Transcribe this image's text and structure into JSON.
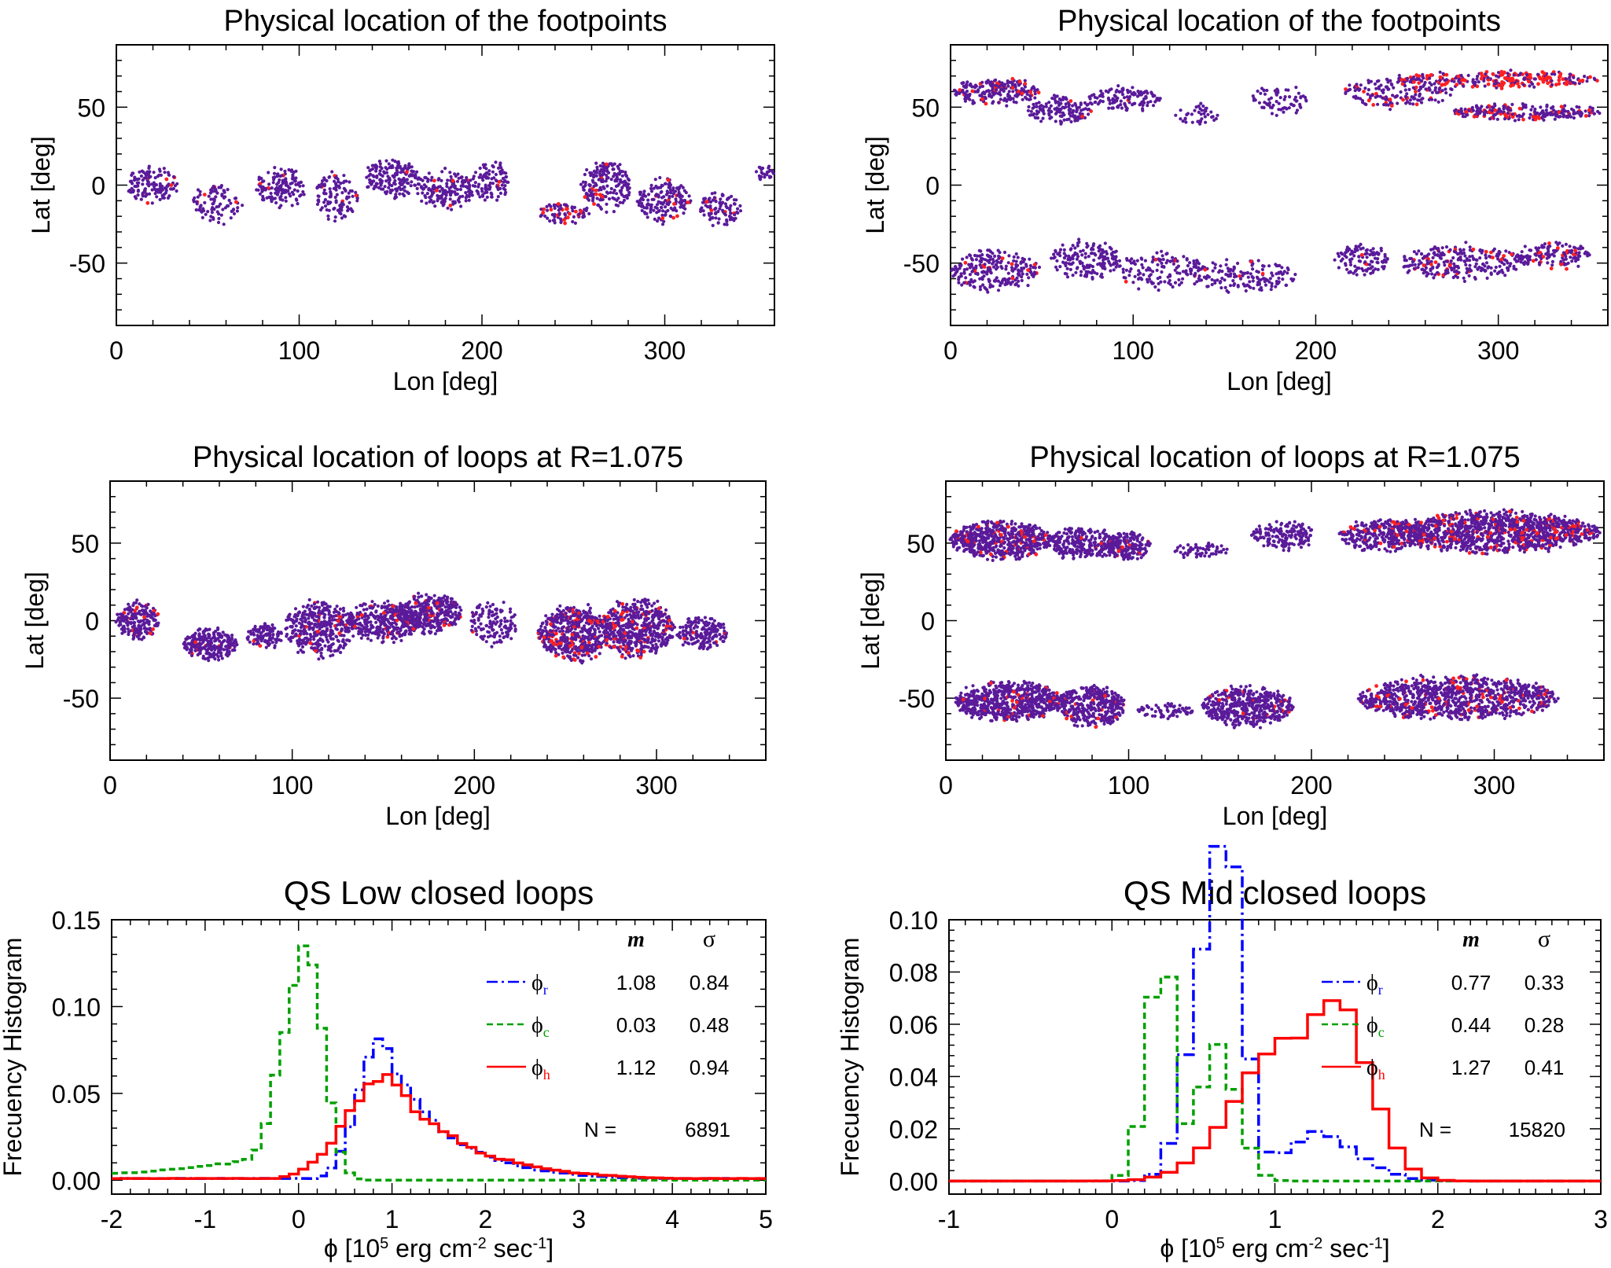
{
  "chart_data": [
    {
      "panel": "map-top-left",
      "type": "scatter",
      "title": "Physical location of the footpoints",
      "xlabel": "Lon [deg]",
      "ylabel": "Lat [deg]",
      "xlim": [
        0,
        360
      ],
      "ylim": [
        -90,
        90
      ],
      "xticks": [
        "0",
        "100",
        "200",
        "300"
      ],
      "yticks": [
        "50",
        "0",
        "-50"
      ],
      "xtick_values": [
        0,
        100,
        200,
        300
      ],
      "ytick_values": [
        50,
        0,
        -50
      ],
      "clusters": [
        {
          "cx": 20,
          "cy": 0,
          "rx": 15,
          "ry": 14,
          "n": 130,
          "red": 0.02
        },
        {
          "cx": 55,
          "cy": -12,
          "rx": 14,
          "ry": 14,
          "n": 90,
          "red": 0.05
        },
        {
          "cx": 90,
          "cy": -2,
          "rx": 14,
          "ry": 16,
          "n": 140,
          "red": 0.02
        },
        {
          "cx": 120,
          "cy": -8,
          "rx": 12,
          "ry": 18,
          "n": 120,
          "red": 0.03
        },
        {
          "cx": 150,
          "cy": 4,
          "rx": 16,
          "ry": 14,
          "n": 170,
          "red": 0.01
        },
        {
          "cx": 180,
          "cy": -3,
          "rx": 16,
          "ry": 14,
          "n": 170,
          "red": 0.02
        },
        {
          "cx": 205,
          "cy": 2,
          "rx": 10,
          "ry": 16,
          "n": 100,
          "red": 0.03
        },
        {
          "cx": 245,
          "cy": -18,
          "rx": 14,
          "ry": 8,
          "n": 80,
          "red": 0.2
        },
        {
          "cx": 268,
          "cy": 0,
          "rx": 14,
          "ry": 18,
          "n": 190,
          "red": 0.08
        },
        {
          "cx": 300,
          "cy": -10,
          "rx": 15,
          "ry": 16,
          "n": 160,
          "red": 0.06
        },
        {
          "cx": 330,
          "cy": -15,
          "rx": 12,
          "ry": 12,
          "n": 100,
          "red": 0.04
        },
        {
          "cx": 355,
          "cy": 8,
          "rx": 5,
          "ry": 6,
          "n": 25,
          "red": 0.0
        }
      ]
    },
    {
      "panel": "map-top-right",
      "type": "scatter",
      "title": "Physical location of the footpoints",
      "xlabel": "Lon [deg]",
      "ylabel": "Lat [deg]",
      "xlim": [
        0,
        360
      ],
      "ylim": [
        -90,
        90
      ],
      "xticks": [
        "0",
        "100",
        "200",
        "300"
      ],
      "yticks": [
        "50",
        "0",
        "-50"
      ],
      "xtick_values": [
        0,
        100,
        200,
        300
      ],
      "ytick_values": [
        50,
        0,
        -50
      ],
      "clusters": [
        {
          "cx": 25,
          "cy": 60,
          "rx": 24,
          "ry": 10,
          "n": 220,
          "red": 0.12
        },
        {
          "cx": 60,
          "cy": 48,
          "rx": 18,
          "ry": 10,
          "n": 140,
          "red": 0.03
        },
        {
          "cx": 95,
          "cy": 55,
          "rx": 20,
          "ry": 9,
          "n": 120,
          "red": 0.02
        },
        {
          "cx": 135,
          "cy": 45,
          "rx": 12,
          "ry": 8,
          "n": 40,
          "red": 0.0
        },
        {
          "cx": 180,
          "cy": 55,
          "rx": 15,
          "ry": 12,
          "n": 70,
          "red": 0.0
        },
        {
          "cx": 245,
          "cy": 60,
          "rx": 30,
          "ry": 12,
          "n": 180,
          "red": 0.12
        },
        {
          "cx": 300,
          "cy": 68,
          "rx": 55,
          "ry": 6,
          "n": 260,
          "red": 0.4
        },
        {
          "cx": 315,
          "cy": 47,
          "rx": 42,
          "ry": 6,
          "n": 240,
          "red": 0.18
        },
        {
          "cx": 25,
          "cy": -55,
          "rx": 25,
          "ry": 15,
          "n": 240,
          "red": 0.04
        },
        {
          "cx": 75,
          "cy": -48,
          "rx": 20,
          "ry": 14,
          "n": 170,
          "red": 0.02
        },
        {
          "cx": 115,
          "cy": -55,
          "rx": 25,
          "ry": 14,
          "n": 130,
          "red": 0.02
        },
        {
          "cx": 160,
          "cy": -58,
          "rx": 30,
          "ry": 12,
          "n": 160,
          "red": 0.03
        },
        {
          "cx": 225,
          "cy": -48,
          "rx": 15,
          "ry": 12,
          "n": 110,
          "red": 0.02
        },
        {
          "cx": 280,
          "cy": -50,
          "rx": 35,
          "ry": 14,
          "n": 260,
          "red": 0.1
        },
        {
          "cx": 330,
          "cy": -45,
          "rx": 20,
          "ry": 10,
          "n": 140,
          "red": 0.1
        }
      ]
    },
    {
      "panel": "map-mid-left",
      "type": "scatter",
      "title": "Physical location of loops at R=1.075",
      "xlabel": "Lon [deg]",
      "ylabel": "Lat [deg]",
      "xlim": [
        0,
        360
      ],
      "ylim": [
        -90,
        90
      ],
      "xticks": [
        "0",
        "100",
        "200",
        "300"
      ],
      "yticks": [
        "50",
        "0",
        "-50"
      ],
      "xtick_values": [
        0,
        100,
        200,
        300
      ],
      "ytick_values": [
        50,
        0,
        -50
      ],
      "clusters": [
        {
          "cx": 15,
          "cy": 0,
          "rx": 12,
          "ry": 14,
          "n": 200,
          "red": 0.05
        },
        {
          "cx": 55,
          "cy": -15,
          "rx": 15,
          "ry": 12,
          "n": 260,
          "red": 0.03
        },
        {
          "cx": 85,
          "cy": -10,
          "rx": 10,
          "ry": 10,
          "n": 110,
          "red": 0.02
        },
        {
          "cx": 115,
          "cy": -5,
          "rx": 20,
          "ry": 20,
          "n": 380,
          "red": 0.06
        },
        {
          "cx": 150,
          "cy": 0,
          "rx": 20,
          "ry": 15,
          "n": 330,
          "red": 0.05
        },
        {
          "cx": 175,
          "cy": 5,
          "rx": 18,
          "ry": 15,
          "n": 320,
          "red": 0.08
        },
        {
          "cx": 210,
          "cy": -2,
          "rx": 14,
          "ry": 16,
          "n": 130,
          "red": 0.02
        },
        {
          "cx": 255,
          "cy": -8,
          "rx": 20,
          "ry": 20,
          "n": 500,
          "red": 0.14
        },
        {
          "cx": 290,
          "cy": -5,
          "rx": 20,
          "ry": 22,
          "n": 520,
          "red": 0.1
        },
        {
          "cx": 325,
          "cy": -8,
          "rx": 14,
          "ry": 12,
          "n": 180,
          "red": 0.04
        }
      ]
    },
    {
      "panel": "map-mid-right",
      "type": "scatter",
      "title": "Physical location of loops at R=1.075",
      "xlabel": "Lon [deg]",
      "ylabel": "Lat [deg]",
      "xlim": [
        0,
        360
      ],
      "ylim": [
        -90,
        90
      ],
      "xticks": [
        "0",
        "100",
        "200",
        "300"
      ],
      "yticks": [
        "50",
        "0",
        "-50"
      ],
      "xtick_values": [
        0,
        100,
        200,
        300
      ],
      "ytick_values": [
        50,
        0,
        -50
      ],
      "clusters": [
        {
          "cx": 30,
          "cy": 52,
          "rx": 28,
          "ry": 14,
          "n": 600,
          "red": 0.07
        },
        {
          "cx": 75,
          "cy": 50,
          "rx": 20,
          "ry": 12,
          "n": 280,
          "red": 0.02
        },
        {
          "cx": 100,
          "cy": 48,
          "rx": 12,
          "ry": 10,
          "n": 180,
          "red": 0.03
        },
        {
          "cx": 140,
          "cy": 45,
          "rx": 15,
          "ry": 6,
          "n": 60,
          "red": 0.0
        },
        {
          "cx": 185,
          "cy": 55,
          "rx": 18,
          "ry": 10,
          "n": 160,
          "red": 0.0
        },
        {
          "cx": 240,
          "cy": 55,
          "rx": 25,
          "ry": 12,
          "n": 320,
          "red": 0.06
        },
        {
          "cx": 300,
          "cy": 57,
          "rx": 58,
          "ry": 15,
          "n": 1200,
          "red": 0.12
        },
        {
          "cx": 35,
          "cy": -52,
          "rx": 30,
          "ry": 15,
          "n": 650,
          "red": 0.05
        },
        {
          "cx": 80,
          "cy": -55,
          "rx": 18,
          "ry": 16,
          "n": 360,
          "red": 0.05
        },
        {
          "cx": 120,
          "cy": -58,
          "rx": 15,
          "ry": 6,
          "n": 70,
          "red": 0.0
        },
        {
          "cx": 165,
          "cy": -55,
          "rx": 25,
          "ry": 15,
          "n": 480,
          "red": 0.04
        },
        {
          "cx": 280,
          "cy": -50,
          "rx": 55,
          "ry": 16,
          "n": 1000,
          "red": 0.08
        }
      ]
    },
    {
      "panel": "hist-bottom-left",
      "type": "line",
      "title": "QS Low closed loops",
      "xlabel_prefix": "ϕ [10",
      "xlabel_exp1": "5",
      "xlabel_mid": " erg cm",
      "xlabel_exp2": "-2",
      "xlabel_mid2": " sec",
      "xlabel_exp3": "-1",
      "xlabel_suffix": "]",
      "ylabel": "Frecuency Histogram",
      "xlim": [
        -2,
        5
      ],
      "ylim": [
        -0.008,
        0.15
      ],
      "xticks": [
        "-2",
        "-1",
        "0",
        "1",
        "2",
        "3",
        "4",
        "5"
      ],
      "xtick_values": [
        -2,
        -1,
        0,
        1,
        2,
        3,
        4,
        5
      ],
      "yticks": [
        "0.00",
        "0.05",
        "0.10",
        "0.15"
      ],
      "ytick_values": [
        0,
        0.05,
        0.1,
        0.15
      ],
      "legend": {
        "col_m": "m",
        "col_sigma": "σ",
        "rows": [
          {
            "symbol": "ϕ",
            "sub": "r",
            "color": "#0000ff",
            "dash": "14,5,3,5",
            "m": "1.08",
            "sigma": "0.84"
          },
          {
            "symbol": "ϕ",
            "sub": "c",
            "color": "#00a000",
            "dash": "8,5",
            "m": "0.03",
            "sigma": "0.48"
          },
          {
            "symbol": "ϕ",
            "sub": "h",
            "color": "#ff0000",
            "dash": "",
            "m": "1.12",
            "sigma": "0.94"
          }
        ],
        "n_label": "N =",
        "n_value": "6891"
      },
      "series": [
        {
          "key": "r",
          "color": "#0000ff",
          "dash": "14,5,3,5",
          "shape": "lognorm",
          "x0": 0.22,
          "peakx": 0.88,
          "peak": 0.081,
          "s1": 0.24,
          "s2": 0.62
        },
        {
          "key": "c",
          "color": "#00a000",
          "dash": "8,5",
          "shape": "skew",
          "peakx": 0.1,
          "peak": 0.137,
          "s1": 0.27,
          "s2": 0.17,
          "tail": 0.012
        },
        {
          "key": "h",
          "color": "#ff0000",
          "dash": "",
          "shape": "lognorm",
          "x0": -0.6,
          "peakx": 0.95,
          "peak": 0.062,
          "s1": 0.42,
          "s2": 0.72
        }
      ]
    },
    {
      "panel": "hist-bottom-right",
      "type": "line",
      "title": "QS Mid closed loops",
      "xlabel_prefix": "ϕ [10",
      "xlabel_exp1": "5",
      "xlabel_mid": " erg cm",
      "xlabel_exp2": "-2",
      "xlabel_mid2": " sec",
      "xlabel_exp3": "-1",
      "xlabel_suffix": "]",
      "ylabel": "Frecuency Histogram",
      "xlim": [
        -1,
        3
      ],
      "ylim": [
        -0.005,
        0.1
      ],
      "xticks": [
        "-1",
        "0",
        "1",
        "2",
        "3"
      ],
      "xtick_values": [
        -1,
        0,
        1,
        2,
        3
      ],
      "yticks": [
        "0.00",
        "0.02",
        "0.04",
        "0.06",
        "0.08",
        "0.10"
      ],
      "ytick_values": [
        0,
        0.02,
        0.04,
        0.06,
        0.08,
        0.1
      ],
      "legend": {
        "col_m": "m",
        "col_sigma": "σ",
        "rows": [
          {
            "symbol": "ϕ",
            "sub": "r",
            "color": "#0000ff",
            "dash": "14,5,3,5",
            "m": "0.77",
            "sigma": "0.33"
          },
          {
            "symbol": "ϕ",
            "sub": "c",
            "color": "#00a000",
            "dash": "8,5",
            "m": "0.44",
            "sigma": "0.28"
          },
          {
            "symbol": "ϕ",
            "sub": "h",
            "color": "#ff0000",
            "dash": "",
            "m": "1.27",
            "sigma": "0.41"
          }
        ],
        "n_label": "N =",
        "n_value": "15820"
      },
      "series": [
        {
          "key": "r",
          "color": "#0000ff",
          "dash": "14,5,3,5",
          "shape": "bimodal",
          "a": [
            0.07,
            0.56,
            0.12,
            0.16
          ],
          "b": [
            0.088,
            0.72,
            0.09,
            0.09
          ],
          "c": [
            0.018,
            1.25,
            0.18,
            0.25
          ]
        },
        {
          "key": "c",
          "color": "#00a000",
          "dash": "8,5",
          "shape": "bimodal",
          "a": [
            0.087,
            0.32,
            0.1,
            0.06
          ],
          "b": [
            0.05,
            0.65,
            0.12,
            0.12
          ],
          "c": [
            0.0,
            0,
            1,
            1
          ]
        },
        {
          "key": "h",
          "color": "#ff0000",
          "dash": "",
          "shape": "bimodal",
          "a": [
            0.05,
            1.05,
            0.3,
            0.22
          ],
          "b": [
            0.055,
            1.4,
            0.14,
            0.2
          ],
          "c": [
            0.0,
            0,
            1,
            1
          ]
        }
      ]
    }
  ]
}
